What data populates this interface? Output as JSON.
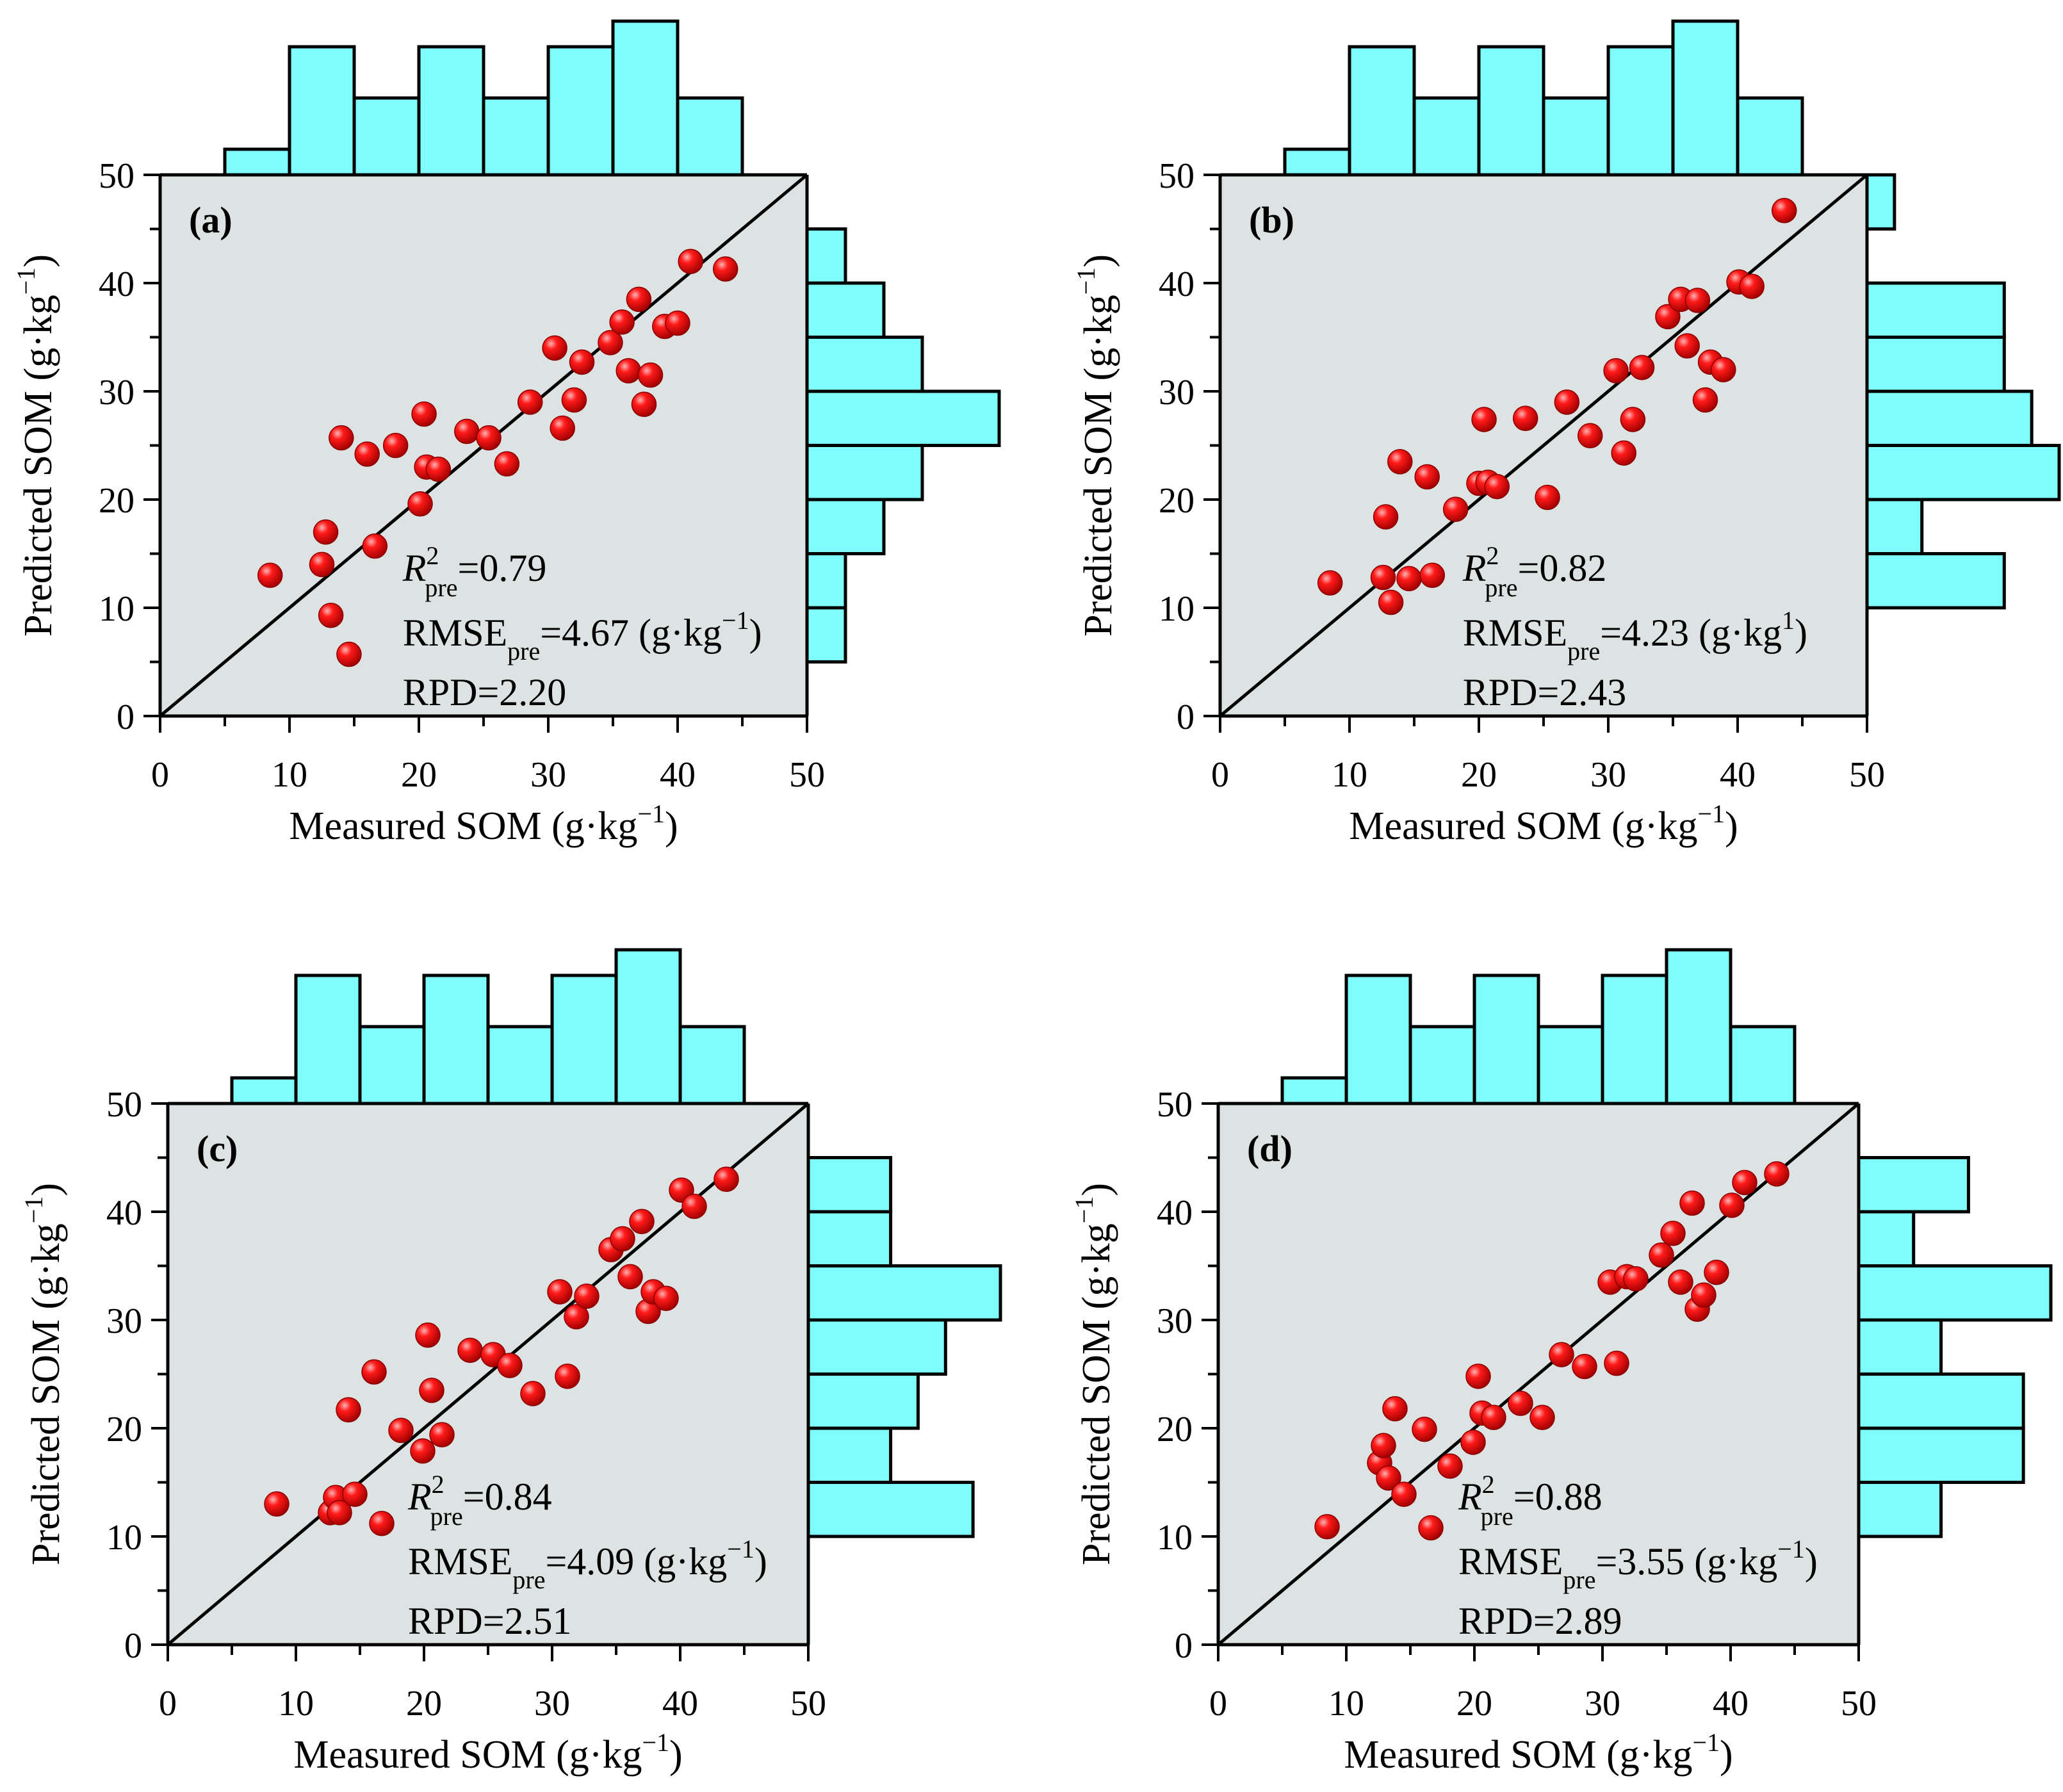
{
  "chart_data": [
    {
      "type": "scatter",
      "panel_label": "(a)",
      "xlabel": "Measured SOM (g·kg",
      "xlabel_sup": "−1",
      "xlabel_end": ")",
      "ylabel": "Predicted SOM (g·kg",
      "ylabel_sup": "−1",
      "ylabel_end": ")",
      "xlim": [
        0,
        50
      ],
      "ylim": [
        0,
        50
      ],
      "xticks": [
        0,
        10,
        20,
        30,
        40,
        50
      ],
      "yticks": [
        0,
        10,
        20,
        30,
        40,
        50
      ],
      "hist_top_label": "50",
      "stats": {
        "r2_main": "R",
        "r2_sup": "2",
        "r2_sub": "pre",
        "r2_value": "=0.79",
        "rmse_main": "RMSE",
        "rmse_sub": "pre",
        "rmse_value": "=4.67 (g·kg",
        "rmse_sup": "−1",
        "rmse_end": ")",
        "rpd": "RPD=2.20"
      },
      "points": [
        [
          8.5,
          13
        ],
        [
          12.5,
          14
        ],
        [
          12.8,
          17
        ],
        [
          13.2,
          9.3
        ],
        [
          14,
          25.7
        ],
        [
          14.6,
          5.7
        ],
        [
          16,
          24.2
        ],
        [
          16.6,
          15.7
        ],
        [
          18.2,
          25
        ],
        [
          20.1,
          19.6
        ],
        [
          20.4,
          27.9
        ],
        [
          20.6,
          23
        ],
        [
          21.5,
          22.8
        ],
        [
          23.7,
          26.3
        ],
        [
          25.4,
          25.7
        ],
        [
          26.8,
          23.3
        ],
        [
          28.6,
          29
        ],
        [
          30.5,
          34
        ],
        [
          31.1,
          26.6
        ],
        [
          32,
          29.2
        ],
        [
          32.6,
          32.7
        ],
        [
          34.8,
          34.5
        ],
        [
          35.7,
          36.4
        ],
        [
          36.2,
          31.9
        ],
        [
          37,
          38.5
        ],
        [
          37.4,
          28.8
        ],
        [
          37.9,
          31.5
        ],
        [
          39,
          36
        ],
        [
          40,
          36.3
        ],
        [
          41,
          42
        ],
        [
          43.7,
          41.3
        ]
      ],
      "hist_x": [
        {
          "range": [
            5,
            10
          ],
          "count": 1
        },
        {
          "range": [
            10,
            15
          ],
          "count": 5
        },
        {
          "range": [
            15,
            20
          ],
          "count": 3
        },
        {
          "range": [
            20,
            25
          ],
          "count": 5
        },
        {
          "range": [
            25,
            30
          ],
          "count": 3
        },
        {
          "range": [
            30,
            35
          ],
          "count": 5
        },
        {
          "range": [
            35,
            40
          ],
          "count": 6
        },
        {
          "range": [
            40,
            45
          ],
          "count": 3
        }
      ],
      "hist_y": [
        {
          "range": [
            5,
            10
          ],
          "count": 1
        },
        {
          "range": [
            10,
            15
          ],
          "count": 1
        },
        {
          "range": [
            15,
            20
          ],
          "count": 2
        },
        {
          "range": [
            20,
            25
          ],
          "count": 3
        },
        {
          "range": [
            25,
            30
          ],
          "count": 5
        },
        {
          "range": [
            30,
            35
          ],
          "count": 3
        },
        {
          "range": [
            35,
            40
          ],
          "count": 2
        },
        {
          "range": [
            40,
            45
          ],
          "count": 1
        }
      ]
    },
    {
      "type": "scatter",
      "panel_label": "(b)",
      "xlabel": "Measured SOM (g·kg",
      "xlabel_sup": "−1",
      "xlabel_end": ")",
      "ylabel": "Predicted SOM (g·kg",
      "ylabel_sup": "−1",
      "ylabel_end": ")",
      "xlim": [
        0,
        50
      ],
      "ylim": [
        0,
        50
      ],
      "xticks": [
        0,
        10,
        20,
        30,
        40,
        50
      ],
      "yticks": [
        0,
        10,
        20,
        30,
        40,
        50
      ],
      "hist_top_label": "50",
      "stats": {
        "r2_main": "R",
        "r2_sup": "2",
        "r2_sub": "pre",
        "r2_value": "=0.82",
        "rmse_main": "RMSE",
        "rmse_sub": "pre",
        "rmse_value": "=4.23 (g·kg",
        "rmse_sup": "1",
        "rmse_end": ")",
        "rpd": "RPD=2.43"
      },
      "points": [
        [
          8.5,
          12.3
        ],
        [
          12.6,
          12.8
        ],
        [
          12.8,
          18.4
        ],
        [
          13.2,
          10.5
        ],
        [
          13.9,
          23.5
        ],
        [
          14.6,
          12.7
        ],
        [
          16,
          22.1
        ],
        [
          16.4,
          13
        ],
        [
          18.2,
          19.1
        ],
        [
          20,
          21.5
        ],
        [
          20.4,
          27.4
        ],
        [
          20.7,
          21.6
        ],
        [
          21.4,
          21.2
        ],
        [
          23.6,
          27.5
        ],
        [
          25.3,
          20.2
        ],
        [
          26.8,
          29
        ],
        [
          28.6,
          25.9
        ],
        [
          30.6,
          31.9
        ],
        [
          31.2,
          24.3
        ],
        [
          31.9,
          27.4
        ],
        [
          32.6,
          32.2
        ],
        [
          34.6,
          36.9
        ],
        [
          35.6,
          38.5
        ],
        [
          36.1,
          34.2
        ],
        [
          36.9,
          38.4
        ],
        [
          37.5,
          29.2
        ],
        [
          37.9,
          32.7
        ],
        [
          38.9,
          32
        ],
        [
          40.1,
          40.1
        ],
        [
          41.1,
          39.7
        ],
        [
          43.6,
          46.7
        ]
      ],
      "hist_x": [
        {
          "range": [
            5,
            10
          ],
          "count": 1
        },
        {
          "range": [
            10,
            15
          ],
          "count": 5
        },
        {
          "range": [
            15,
            20
          ],
          "count": 3
        },
        {
          "range": [
            20,
            25
          ],
          "count": 5
        },
        {
          "range": [
            25,
            30
          ],
          "count": 3
        },
        {
          "range": [
            30,
            35
          ],
          "count": 5
        },
        {
          "range": [
            35,
            40
          ],
          "count": 6
        },
        {
          "range": [
            40,
            45
          ],
          "count": 3
        }
      ],
      "hist_y": [
        {
          "range": [
            10,
            15
          ],
          "count": 5
        },
        {
          "range": [
            15,
            20
          ],
          "count": 2
        },
        {
          "range": [
            20,
            25
          ],
          "count": 7
        },
        {
          "range": [
            25,
            30
          ],
          "count": 6
        },
        {
          "range": [
            30,
            35
          ],
          "count": 5
        },
        {
          "range": [
            35,
            40
          ],
          "count": 5
        },
        {
          "range": [
            45,
            50
          ],
          "count": 1
        }
      ]
    },
    {
      "type": "scatter",
      "panel_label": "(c)",
      "xlabel": "Measured SOM (g·kg",
      "xlabel_sup": "−1",
      "xlabel_end": ")",
      "ylabel": "Predicted SOM (g·kg",
      "ylabel_sup": "−1",
      "ylabel_end": ")",
      "xlim": [
        0,
        50
      ],
      "ylim": [
        0,
        50
      ],
      "xticks": [
        0,
        10,
        20,
        30,
        40,
        50
      ],
      "yticks": [
        0,
        10,
        20,
        30,
        40,
        50
      ],
      "hist_top_label": "50",
      "stats": {
        "r2_main": "R",
        "r2_sup": "2",
        "r2_sub": "pre",
        "r2_value": "=0.84",
        "rmse_main": "RMSE",
        "rmse_sub": "pre",
        "rmse_value": "=4.09 (g·kg",
        "rmse_sup": "−1",
        "rmse_end": ")",
        "rpd": "RPD=2.51"
      },
      "points": [
        [
          8.5,
          13
        ],
        [
          12.7,
          12.2
        ],
        [
          13.1,
          13.6
        ],
        [
          13.4,
          12.2
        ],
        [
          14.1,
          21.7
        ],
        [
          14.6,
          13.9
        ],
        [
          16.1,
          25.2
        ],
        [
          16.7,
          11.2
        ],
        [
          18.2,
          19.8
        ],
        [
          19.9,
          17.9
        ],
        [
          20.3,
          28.6
        ],
        [
          20.6,
          23.5
        ],
        [
          21.4,
          19.4
        ],
        [
          23.6,
          27.2
        ],
        [
          25.4,
          26.8
        ],
        [
          26.7,
          25.8
        ],
        [
          28.5,
          23.2
        ],
        [
          30.6,
          32.6
        ],
        [
          31.2,
          24.8
        ],
        [
          31.9,
          30.3
        ],
        [
          32.7,
          32.2
        ],
        [
          34.6,
          36.5
        ],
        [
          35.5,
          37.5
        ],
        [
          36.1,
          34
        ],
        [
          37,
          39.1
        ],
        [
          37.5,
          30.8
        ],
        [
          37.9,
          32.6
        ],
        [
          38.9,
          32
        ],
        [
          40.1,
          42
        ],
        [
          41.1,
          40.5
        ],
        [
          43.6,
          43
        ]
      ],
      "hist_x": [
        {
          "range": [
            5,
            10
          ],
          "count": 1
        },
        {
          "range": [
            10,
            15
          ],
          "count": 5
        },
        {
          "range": [
            15,
            20
          ],
          "count": 3
        },
        {
          "range": [
            20,
            25
          ],
          "count": 5
        },
        {
          "range": [
            25,
            30
          ],
          "count": 3
        },
        {
          "range": [
            30,
            35
          ],
          "count": 5
        },
        {
          "range": [
            35,
            40
          ],
          "count": 6
        },
        {
          "range": [
            40,
            45
          ],
          "count": 3
        }
      ],
      "hist_y": [
        {
          "range": [
            10,
            15
          ],
          "count": 6
        },
        {
          "range": [
            15,
            20
          ],
          "count": 3
        },
        {
          "range": [
            20,
            25
          ],
          "count": 4
        },
        {
          "range": [
            25,
            30
          ],
          "count": 5
        },
        {
          "range": [
            30,
            35
          ],
          "count": 7
        },
        {
          "range": [
            35,
            40
          ],
          "count": 3
        },
        {
          "range": [
            40,
            45
          ],
          "count": 3
        }
      ]
    },
    {
      "type": "scatter",
      "panel_label": "(d)",
      "xlabel": "Measured SOM (g·kg",
      "xlabel_sup": "−1",
      "xlabel_end": ")",
      "ylabel": "Predicted SOM (g·kg",
      "ylabel_sup": "−1",
      "ylabel_end": ")",
      "xlim": [
        0,
        50
      ],
      "ylim": [
        0,
        50
      ],
      "xticks": [
        0,
        10,
        20,
        30,
        40,
        50
      ],
      "yticks": [
        0,
        10,
        20,
        30,
        40,
        50
      ],
      "hist_top_label": "50",
      "stats": {
        "r2_main": "R",
        "r2_sup": "2",
        "r2_sub": "pre",
        "r2_value": "=0.88",
        "rmse_main": "RMSE",
        "rmse_sub": "pre",
        "rmse_value": "=3.55 (g·kg",
        "rmse_sup": "−1",
        "rmse_end": ")",
        "rpd": "RPD=2.89"
      },
      "points": [
        [
          8.5,
          10.9
        ],
        [
          12.6,
          16.8
        ],
        [
          12.9,
          18.4
        ],
        [
          13.3,
          15.4
        ],
        [
          13.8,
          21.8
        ],
        [
          14.5,
          13.9
        ],
        [
          16.1,
          19.9
        ],
        [
          16.6,
          10.8
        ],
        [
          18.1,
          16.5
        ],
        [
          19.9,
          18.7
        ],
        [
          20.3,
          24.8
        ],
        [
          20.6,
          21.4
        ],
        [
          21.5,
          21
        ],
        [
          23.6,
          22.3
        ],
        [
          25.3,
          21
        ],
        [
          26.8,
          26.8
        ],
        [
          28.6,
          25.7
        ],
        [
          30.6,
          33.5
        ],
        [
          31.1,
          26
        ],
        [
          31.9,
          34
        ],
        [
          32.6,
          33.8
        ],
        [
          34.6,
          36
        ],
        [
          35.5,
          38
        ],
        [
          36.1,
          33.5
        ],
        [
          37,
          40.8
        ],
        [
          37.4,
          31
        ],
        [
          37.9,
          32.3
        ],
        [
          38.9,
          34.4
        ],
        [
          40.1,
          40.6
        ],
        [
          41.1,
          42.7
        ],
        [
          43.6,
          43.5
        ]
      ],
      "hist_x": [
        {
          "range": [
            5,
            10
          ],
          "count": 1
        },
        {
          "range": [
            10,
            15
          ],
          "count": 5
        },
        {
          "range": [
            15,
            20
          ],
          "count": 3
        },
        {
          "range": [
            20,
            25
          ],
          "count": 5
        },
        {
          "range": [
            25,
            30
          ],
          "count": 3
        },
        {
          "range": [
            30,
            35
          ],
          "count": 5
        },
        {
          "range": [
            35,
            40
          ],
          "count": 6
        },
        {
          "range": [
            40,
            45
          ],
          "count": 3
        }
      ],
      "hist_y": [
        {
          "range": [
            10,
            15
          ],
          "count": 3
        },
        {
          "range": [
            15,
            20
          ],
          "count": 6
        },
        {
          "range": [
            20,
            25
          ],
          "count": 6
        },
        {
          "range": [
            25,
            30
          ],
          "count": 3
        },
        {
          "range": [
            30,
            35
          ],
          "count": 7
        },
        {
          "range": [
            35,
            40
          ],
          "count": 2
        },
        {
          "range": [
            40,
            45
          ],
          "count": 4
        }
      ]
    }
  ],
  "colors": {
    "plot_bg": "#dde2e2",
    "hist_fill": "#7ffcfc",
    "point_fill": "#ff1a1a",
    "point_highlight": "#ffb3b3",
    "axis": "#000000"
  }
}
